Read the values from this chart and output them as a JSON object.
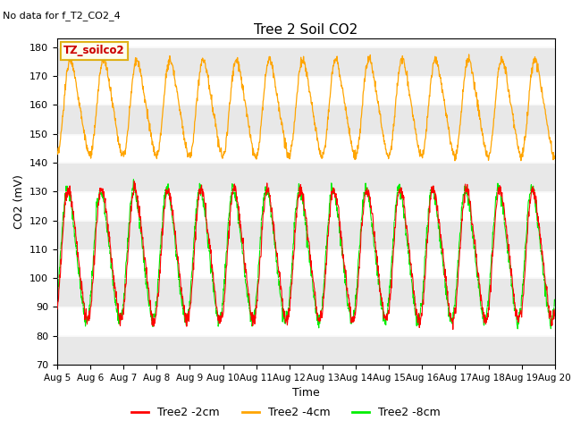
{
  "title": "Tree 2 Soil CO2",
  "no_data_text": "No data for f_T2_CO2_4",
  "ylabel": "CO2 (mV)",
  "xlabel": "Time",
  "ylim": [
    70,
    183
  ],
  "yticks": [
    70,
    80,
    90,
    100,
    110,
    120,
    130,
    140,
    150,
    160,
    170,
    180
  ],
  "legend_box_label": "TZ_soilco2",
  "series": [
    {
      "label": "Tree2 -2cm",
      "color": "#ff0000"
    },
    {
      "label": "Tree2 -4cm",
      "color": "#ffa500"
    },
    {
      "label": "Tree2 -8cm",
      "color": "#00ee00"
    }
  ],
  "bg_color": "#ffffff",
  "band_color": "#e8e8e8",
  "num_points": 1500
}
